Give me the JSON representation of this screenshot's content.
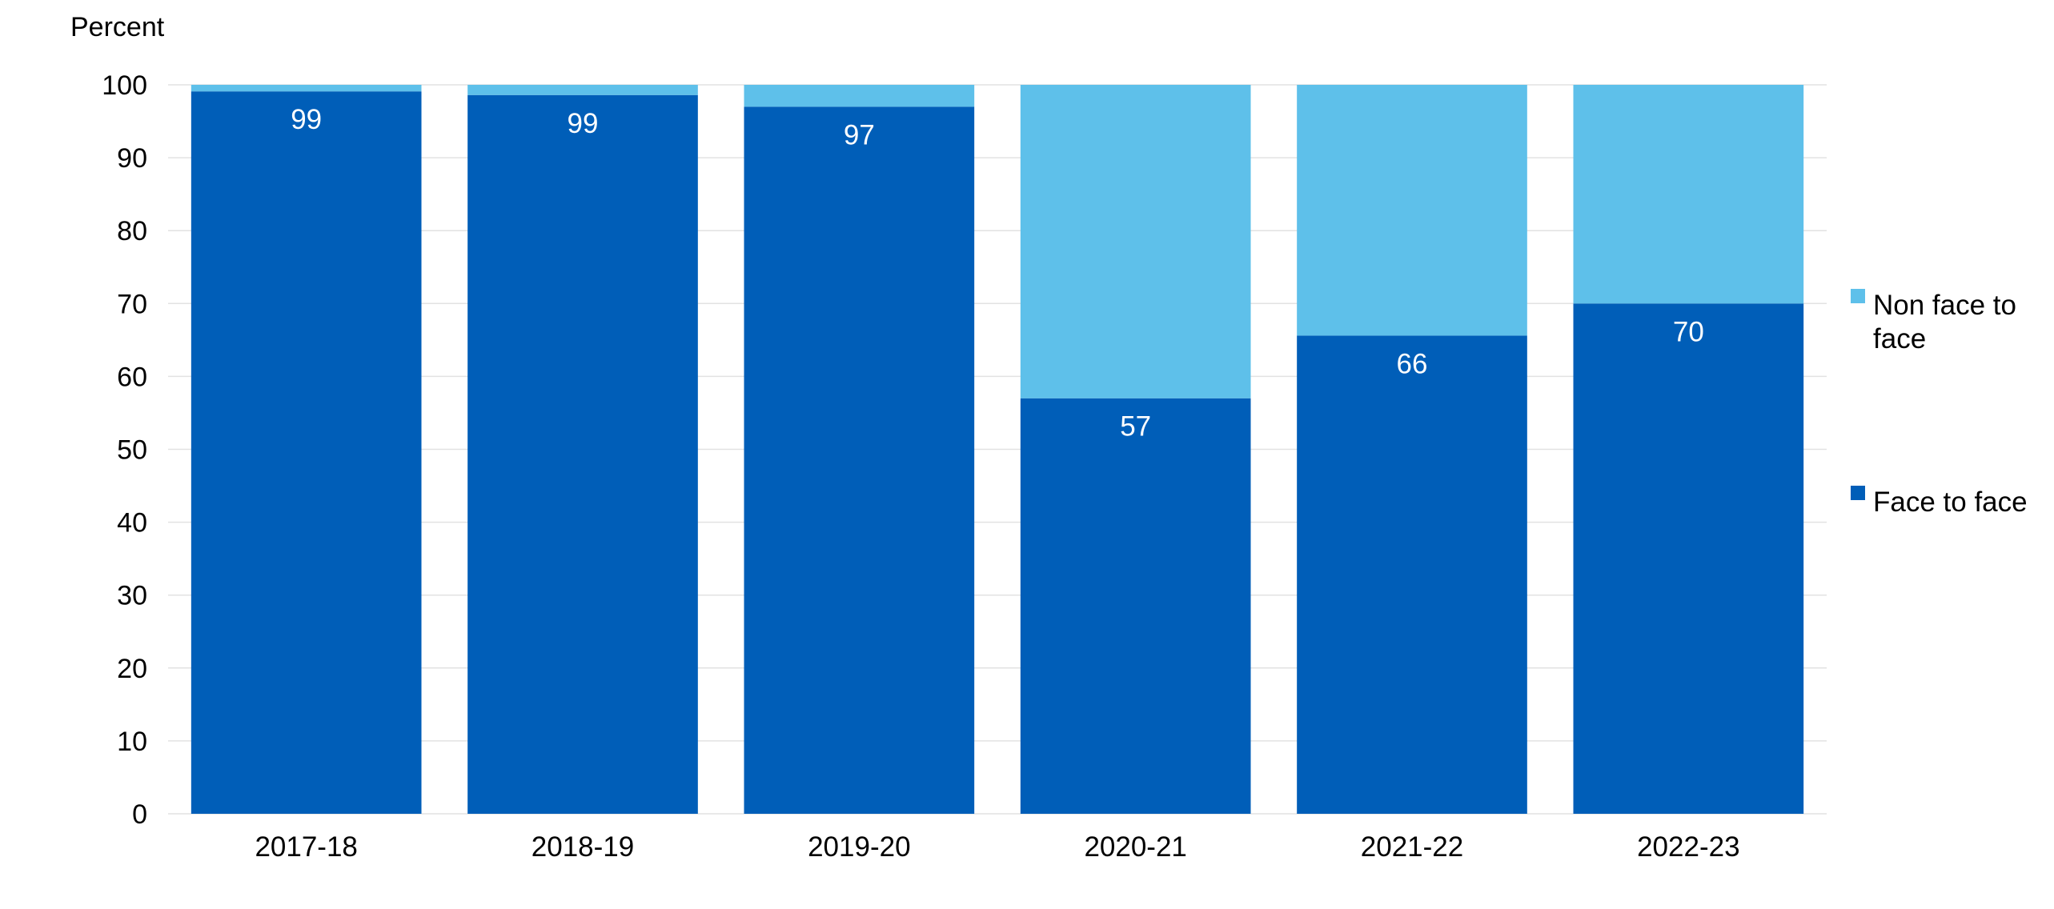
{
  "chart_data": {
    "type": "bar",
    "stacked": true,
    "ylabel": "Percent",
    "ylim": [
      0,
      100
    ],
    "yticks": [
      0,
      10,
      20,
      30,
      40,
      50,
      60,
      70,
      80,
      90,
      100
    ],
    "grid": true,
    "legend_position": "right",
    "categories": [
      "2017-18",
      "2018-19",
      "2019-20",
      "2020-21",
      "2021-22",
      "2022-23"
    ],
    "series": [
      {
        "name": "Face to face",
        "color": "#005EB8",
        "values": [
          99.1,
          98.6,
          97.0,
          57.0,
          65.6,
          70.0
        ],
        "labels": [
          "99",
          "99",
          "97",
          "57",
          "66",
          "70"
        ]
      },
      {
        "name": "Non face to face",
        "color": "#5EC0EA",
        "values": [
          0.9,
          1.4,
          3.0,
          43.0,
          34.4,
          30.0
        ],
        "labels": [
          "",
          "",
          "",
          "",
          "",
          ""
        ]
      }
    ],
    "legend": [
      {
        "lines": [
          "Non face to",
          "face"
        ],
        "color": "#5EC0EA"
      },
      {
        "lines": [
          "Face to face"
        ],
        "color": "#005EB8"
      }
    ]
  }
}
